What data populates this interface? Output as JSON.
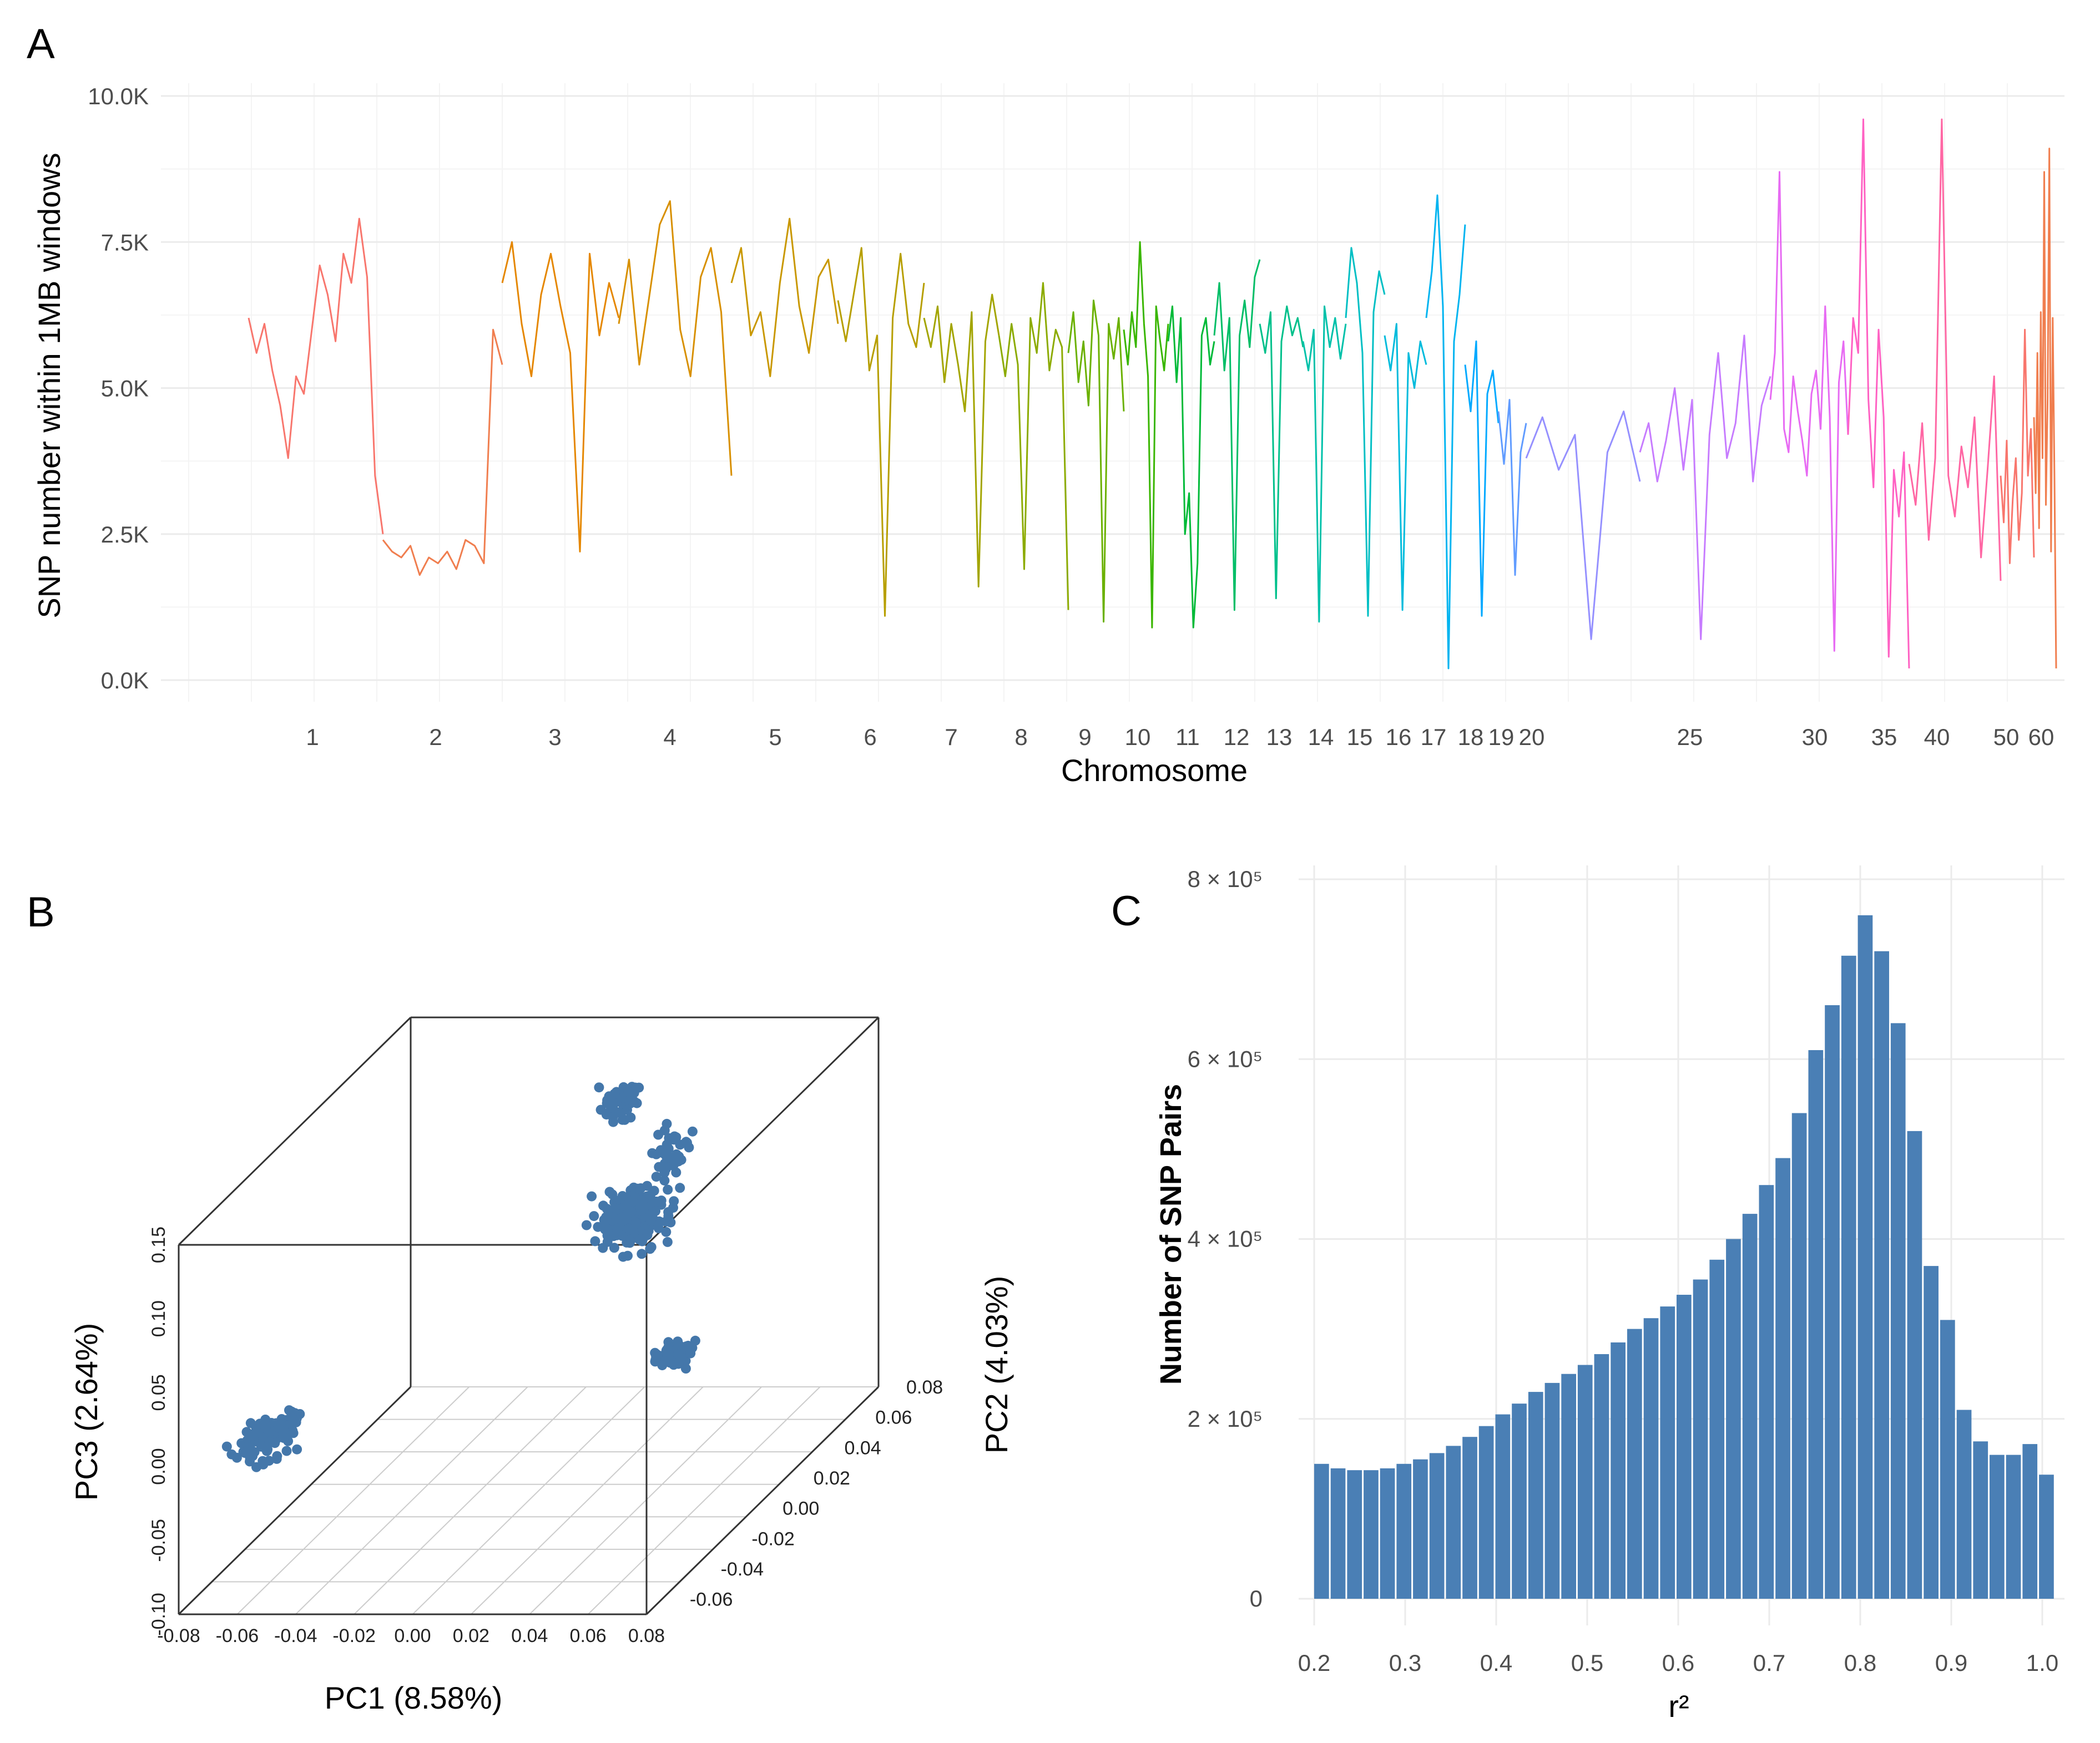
{
  "panels": {
    "a": "A",
    "b": "B",
    "c": "C"
  },
  "chart_data": [
    {
      "id": "A",
      "type": "line",
      "xlabel": "Chromosome",
      "ylabel": "SNP number within 1MB windows",
      "ylim": [
        0,
        10000
      ],
      "y_ticks": [
        0,
        2500,
        5000,
        7500,
        10000
      ],
      "y_tick_labels": [
        "0.0K",
        "2.5K",
        "5.0K",
        "7.5K",
        "10.0K"
      ],
      "grid": true,
      "x_tick_labels": [
        "1",
        "2",
        "3",
        "4",
        "5",
        "6",
        "7",
        "8",
        "9",
        "10",
        "11",
        "12",
        "13",
        "14",
        "15",
        "16",
        "17",
        "18",
        "19",
        "20",
        "25",
        "30",
        "35",
        "40",
        "50",
        "60"
      ],
      "chromosome_colors": [
        "#F8766D",
        "#F07E4F",
        "#E58700",
        "#D89000",
        "#C99800",
        "#B79F00",
        "#A3A500",
        "#8CAB00",
        "#6BB100",
        "#39B600",
        "#00BA38",
        "#00BE67",
        "#00C08B",
        "#00C1AA",
        "#00BFC4",
        "#00BBDC",
        "#00B4F0",
        "#00A9FF",
        "#619CFF",
        "#9590FF",
        "#C77CFF",
        "#E76BF3",
        "#FF61C3",
        "#FF67A4"
      ],
      "series": [
        {
          "chromosome": "1",
          "values": [
            6200,
            5600,
            6100,
            5300,
            4700,
            3800,
            5200,
            4900,
            6000,
            7100,
            6600,
            5800,
            7300,
            6800,
            7900,
            6900,
            3500,
            2500
          ]
        },
        {
          "chromosome": "2",
          "values": [
            2400,
            2200,
            2100,
            2300,
            1800,
            2100,
            2000,
            2200,
            1900,
            2400,
            2300,
            2000,
            6000,
            5400
          ]
        },
        {
          "chromosome": "3",
          "values": [
            6800,
            7500,
            6100,
            5200,
            6600,
            7300,
            6400,
            5600,
            2200,
            7300,
            5900,
            6800,
            6200
          ]
        },
        {
          "chromosome": "4",
          "values": [
            6100,
            7200,
            5400,
            6600,
            7800,
            8200,
            6000,
            5200,
            6900,
            7400,
            6300,
            3500
          ]
        },
        {
          "chromosome": "5",
          "values": [
            6800,
            7400,
            5900,
            6300,
            5200,
            6800,
            7900,
            6400,
            5600,
            6900,
            7200,
            6100
          ]
        },
        {
          "chromosome": "6",
          "values": [
            6500,
            5800,
            6600,
            7400,
            5300,
            5900,
            1100,
            6200,
            7300,
            6100,
            5700,
            6800
          ]
        },
        {
          "chromosome": "7",
          "values": [
            6200,
            5700,
            6400,
            5100,
            6100,
            5400,
            4600,
            6300,
            1600,
            5800,
            6600,
            5900
          ]
        },
        {
          "chromosome": "8",
          "values": [
            5900,
            5200,
            6100,
            5400,
            1900,
            6200,
            5600,
            6800,
            5300,
            6000,
            5700,
            1200
          ]
        },
        {
          "chromosome": "9",
          "values": [
            5600,
            6300,
            5100,
            5800,
            4700,
            6500,
            5900,
            1000,
            6100,
            5500,
            6200,
            4600
          ]
        },
        {
          "chromosome": "10",
          "values": [
            6000,
            5400,
            6300,
            5700,
            7500,
            6100,
            5200,
            900,
            6400,
            5800,
            5300,
            6100
          ]
        },
        {
          "chromosome": "11",
          "values": [
            5800,
            6400,
            5100,
            6200,
            2500,
            3200,
            900,
            2000,
            5900,
            6200,
            5400,
            5800
          ]
        },
        {
          "chromosome": "12",
          "values": [
            5900,
            6800,
            5300,
            6200,
            1200,
            5900,
            6500,
            5700,
            6900,
            7200
          ]
        },
        {
          "chromosome": "13",
          "values": [
            6100,
            5600,
            6300,
            1400,
            5800,
            6400,
            5900,
            6200,
            5700
          ]
        },
        {
          "chromosome": "14",
          "values": [
            5800,
            5300,
            6000,
            1000,
            6400,
            5700,
            6200,
            5500,
            6100
          ]
        },
        {
          "chromosome": "15",
          "values": [
            6200,
            7400,
            6800,
            5600,
            1100,
            6300,
            7000,
            6600
          ]
        },
        {
          "chromosome": "16",
          "values": [
            5900,
            5300,
            6100,
            1200,
            5600,
            5000,
            5800,
            5400
          ]
        },
        {
          "chromosome": "17",
          "values": [
            6200,
            7000,
            8300,
            6400,
            200,
            5800,
            6600,
            7800
          ]
        },
        {
          "chromosome": "18",
          "values": [
            5400,
            4600,
            5800,
            1100,
            4900,
            5300,
            4400
          ]
        },
        {
          "chromosome": "19",
          "values": [
            4600,
            3700,
            4800,
            1800,
            3900,
            4400
          ]
        },
        {
          "chromosome": "20",
          "values": [
            3800,
            4500,
            3600,
            4200,
            700,
            3900,
            4600,
            3400
          ]
        },
        {
          "chromosome": "25",
          "values": [
            3900,
            4400,
            3400,
            4100,
            5000,
            3600,
            4800,
            700,
            4200,
            5600,
            3800,
            4400,
            5900,
            3400,
            4700,
            5200
          ]
        },
        {
          "chromosome": "30",
          "values": [
            4800,
            5600,
            8700,
            4300,
            3900,
            5200,
            4600,
            4100,
            3500,
            4900,
            5300,
            4300,
            6400,
            4500,
            500,
            5100,
            5800,
            4200
          ]
        },
        {
          "chromosome": "35",
          "values": [
            4200,
            6200,
            5600,
            9600,
            4800,
            3300,
            6000,
            4500,
            400,
            3600,
            2800,
            3900,
            200
          ]
        },
        {
          "chromosome": "40",
          "values": [
            3700,
            3000,
            4400,
            2400,
            3800,
            9600,
            3500,
            2800,
            4000,
            3300,
            4500,
            2100,
            3600,
            5200,
            1700
          ]
        },
        {
          "chromosome": "50",
          "values": [
            3500,
            2700,
            4100,
            2000,
            3100,
            3800,
            2400,
            3200,
            6000,
            3500,
            4300,
            2100
          ]
        },
        {
          "chromosome": "60",
          "values": [
            4500,
            3200,
            5600,
            2600,
            6300,
            3800,
            8700,
            3000,
            4800,
            9100,
            2200,
            6200,
            3500,
            200
          ]
        }
      ]
    },
    {
      "id": "B",
      "type": "scatter",
      "xlabel": "PC1 (8.58%)",
      "ylabel": "PC2 (4.03%)",
      "zlabel": "PC3 (2.64%)",
      "x_ticks": [
        "-0.08",
        "-0.06",
        "-0.04",
        "-0.02",
        "0.00",
        "0.02",
        "0.04",
        "0.06",
        "0.08"
      ],
      "y_ticks": [
        "-0.06",
        "-0.04",
        "-0.02",
        "0.00",
        "0.02",
        "0.04",
        "0.06",
        "0.08"
      ],
      "z_ticks": [
        "-0.10",
        "-0.05",
        "0.00",
        "0.05",
        "0.10",
        "0.15"
      ],
      "xlim": [
        -0.08,
        0.08
      ],
      "ylim": [
        -0.07,
        0.08
      ],
      "zlim": [
        -0.1,
        0.15
      ],
      "point_color": "#4477AA",
      "clusters": [
        {
          "center": [
            -0.055,
            -0.06,
            0.01
          ],
          "spread": [
            0.006,
            0.01,
            0.008
          ],
          "n": 110
        },
        {
          "center": [
            0.06,
            -0.015,
            0.02
          ],
          "spread": [
            0.005,
            0.004,
            0.006
          ],
          "n": 70
        },
        {
          "center": [
            0.02,
            0.035,
            0.06
          ],
          "spread": [
            0.01,
            0.008,
            0.016
          ],
          "n": 220
        },
        {
          "center": [
            0.005,
            0.055,
            0.12
          ],
          "spread": [
            0.004,
            0.005,
            0.01
          ],
          "n": 60
        },
        {
          "center": [
            0.03,
            0.04,
            0.1
          ],
          "spread": [
            0.005,
            0.005,
            0.012
          ],
          "n": 40
        }
      ]
    },
    {
      "id": "C",
      "type": "bar",
      "xlabel": "r²",
      "ylabel": "Number of SNP Pairs",
      "xlim": [
        0.2,
        1.0
      ],
      "ylim": [
        0,
        800000
      ],
      "x_ticks": [
        "0.2",
        "0.3",
        "0.4",
        "0.5",
        "0.6",
        "0.7",
        "0.8",
        "0.9",
        "1.0"
      ],
      "y_tick_labels": [
        "0",
        "2 × 10⁵",
        "4 × 10⁵",
        "6 × 10⁵",
        "8 × 10⁵"
      ],
      "bar_color": "#4A7FB5",
      "bin_width": 0.02,
      "values": [
        150000,
        145000,
        143000,
        143000,
        145000,
        150000,
        155000,
        162000,
        170000,
        180000,
        192000,
        205000,
        217000,
        230000,
        240000,
        250000,
        260000,
        272000,
        285000,
        300000,
        312000,
        325000,
        338000,
        355000,
        377000,
        400000,
        428000,
        460000,
        490000,
        540000,
        610000,
        660000,
        715000,
        760000,
        720000,
        640000,
        520000,
        370000,
        310000,
        210000,
        175000,
        160000,
        160000,
        172000,
        138000
      ]
    }
  ]
}
